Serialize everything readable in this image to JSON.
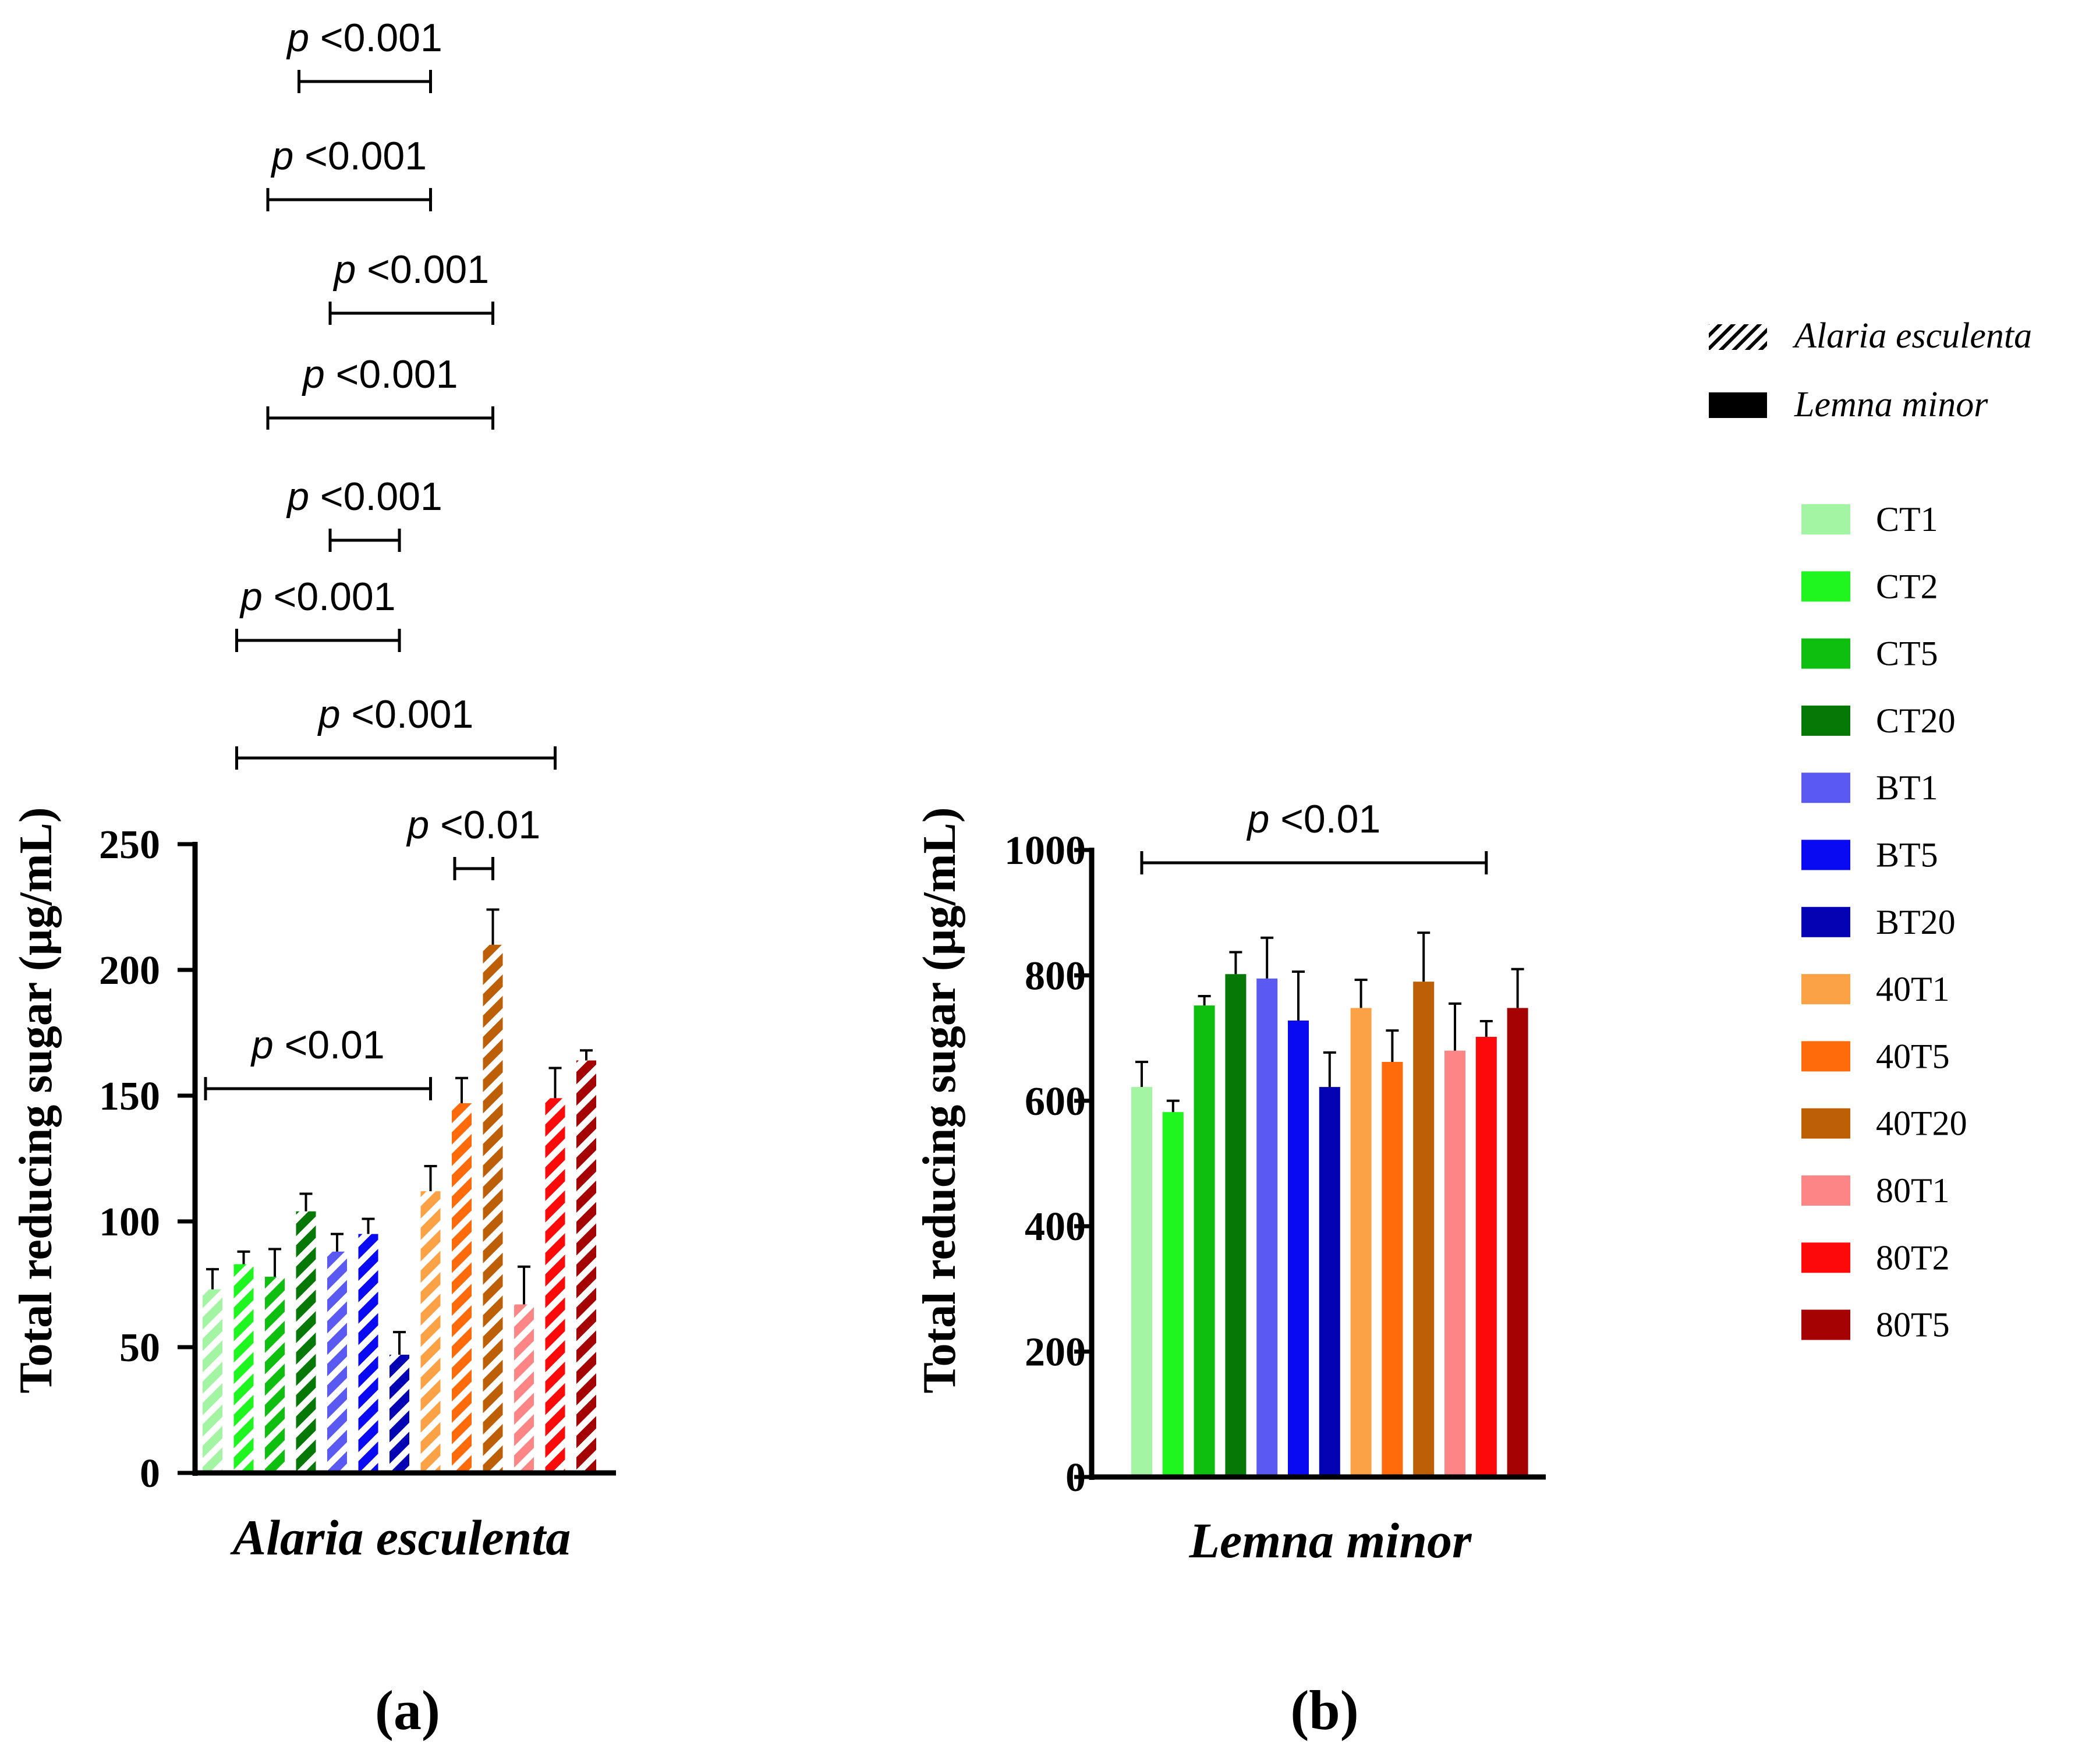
{
  "groups": [
    {
      "key": "CT1",
      "label": "CT1",
      "color": "#a3f5a3"
    },
    {
      "key": "CT2",
      "label": "CT2",
      "color": "#1ff51f"
    },
    {
      "key": "CT5",
      "label": "CT5",
      "color": "#0fbf0f"
    },
    {
      "key": "CT20",
      "label": "CT20",
      "color": "#067806"
    },
    {
      "key": "BT1",
      "label": "BT1",
      "color": "#5a5af2"
    },
    {
      "key": "BT5",
      "label": "BT5",
      "color": "#0a0af2"
    },
    {
      "key": "BT20",
      "label": "BT20",
      "color": "#0303b4"
    },
    {
      "key": "40T1",
      "label": "40T1",
      "color": "#fca246"
    },
    {
      "key": "40T5",
      "label": "40T5",
      "color": "#ff6a0a"
    },
    {
      "key": "40T20",
      "label": "40T20",
      "color": "#bd5f06"
    },
    {
      "key": "80T1",
      "label": "80T1",
      "color": "#fd8585"
    },
    {
      "key": "80T2",
      "label": "80T2",
      "color": "#fc0a0a"
    },
    {
      "key": "80T5",
      "label": "80T5",
      "color": "#a50303"
    }
  ],
  "legend": {
    "hatched_label": "Alaria esculenta",
    "solid_label": "Lemna minor"
  },
  "chart_data": [
    {
      "type": "bar",
      "panel": "(a)",
      "pattern": "hatched",
      "xlabel": "Alaria esculenta",
      "ylabel": "Total reducing sugar (µg/mL)",
      "ylim": [
        0,
        250
      ],
      "yticks": [
        0,
        50,
        100,
        150,
        200,
        250
      ],
      "categories": [
        "CT1",
        "CT2",
        "CT5",
        "CT20",
        "BT1",
        "BT5",
        "BT20",
        "40T1",
        "40T5",
        "40T20",
        "80T1",
        "80T2",
        "80T5"
      ],
      "values": [
        73,
        83,
        78,
        104,
        88,
        95,
        47,
        112,
        147,
        210,
        67,
        149,
        164
      ],
      "errors": [
        8,
        5,
        11,
        7,
        7,
        6,
        9,
        10,
        10,
        14,
        15,
        12,
        4
      ],
      "annotations": [
        {
          "text": "<0.001",
          "from": "CT20",
          "to": "40T1"
        },
        {
          "text": "<0.001",
          "from": "CT5",
          "to": "40T1"
        },
        {
          "text": "<0.001",
          "from": "BT1",
          "to": "40T20"
        },
        {
          "text": "<0.001",
          "from": "CT5",
          "to": "40T20"
        },
        {
          "text": "<0.001",
          "from": "BT1",
          "to": "BT20"
        },
        {
          "text": "<0.001",
          "from": "CT2",
          "to": "BT20"
        },
        {
          "text": "<0.001",
          "from": "CT2",
          "to": "80T2"
        },
        {
          "text": "<0.01",
          "from": "40T5",
          "to": "40T20"
        },
        {
          "text": "<0.01",
          "from": "CT1",
          "to": "40T1"
        }
      ]
    },
    {
      "type": "bar",
      "panel": "(b)",
      "pattern": "solid",
      "xlabel": "Lemna minor",
      "ylabel": "Total reducing sugar (µg/mL)",
      "ylim": [
        0,
        1000
      ],
      "yticks": [
        0,
        200,
        400,
        600,
        800,
        1000
      ],
      "categories": [
        "CT1",
        "CT2",
        "CT5",
        "CT20",
        "BT1",
        "BT5",
        "BT20",
        "40T1",
        "40T5",
        "40T20",
        "80T1",
        "80T2",
        "80T5"
      ],
      "values": [
        622,
        582,
        752,
        802,
        795,
        728,
        622,
        748,
        662,
        790,
        680,
        702,
        748
      ],
      "errors": [
        40,
        18,
        15,
        35,
        65,
        78,
        55,
        45,
        50,
        78,
        75,
        25,
        62
      ],
      "annotations": [
        {
          "text": "<0.01",
          "from": "CT1",
          "to": "80T2"
        }
      ]
    }
  ]
}
